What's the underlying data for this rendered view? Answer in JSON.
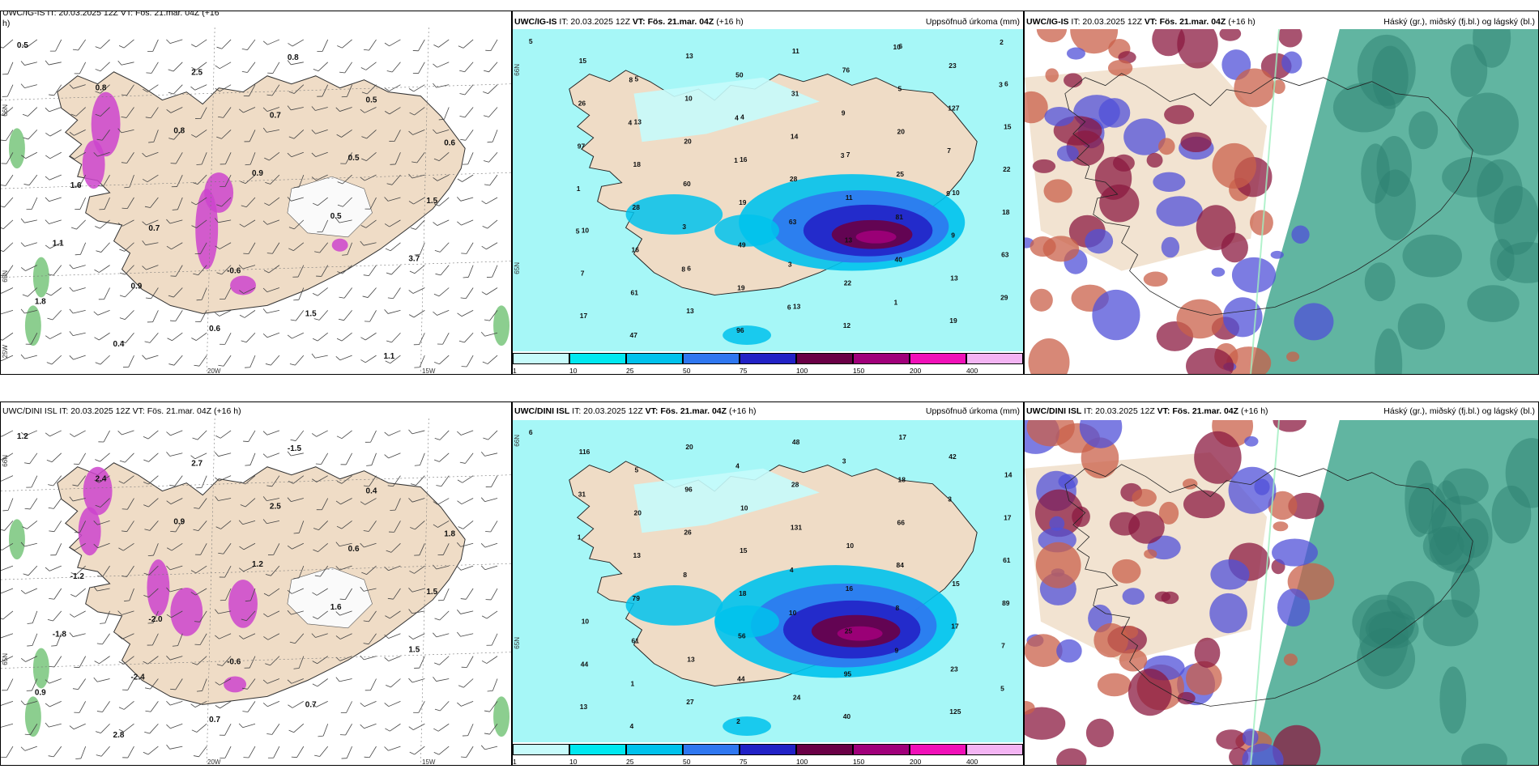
{
  "legend_colors": [
    "#c6fbfb",
    "#00e8f0",
    "#00c2ec",
    "#2f77f0",
    "#2222c6",
    "#6a0046",
    "#a0007a",
    "#f010b8",
    "#f3b4f3"
  ],
  "colorbar_ticks": [
    "1",
    "10",
    "25",
    "50",
    "75",
    "100",
    "150",
    "200",
    "400"
  ],
  "precip_title": "Uppsöfnuð úrkoma (mm)",
  "cloud_title": "Háský (gr.), miðský (fj.bl.) og lágský (bl.)",
  "rows": [
    {
      "model": "UWC/IG-IS",
      "it": " IT: 20.03.2025 12Z ",
      "vt_label": "VT: Fös. 21.mar. 04Z",
      "lead": " (+16 h)",
      "left_title": "UWC/IG-IS IT: 20.03.2025 12Z VT: Fös. 21.mar. 04Z (+16",
      "left_title_wrap": "h)",
      "lon_labels": [
        "20W",
        "15W"
      ],
      "lat_labels": [
        "66N",
        "65N",
        "25W"
      ],
      "temp_labels": [
        "0.5",
        "0.8",
        "0.8",
        "0.9",
        "0.5",
        "3.7",
        "1.8",
        "0.4",
        "2.5",
        "0.7",
        "0.5",
        "1.5",
        "1.1",
        "0.9",
        "0.6",
        "0.8",
        "0.5",
        "0.6",
        "1.6",
        "0.7",
        "-0.6",
        "1.5",
        "1.1"
      ],
      "precip_labels": [
        "5",
        "5",
        "4",
        "7",
        "10",
        "10",
        "6",
        "13",
        "6",
        "6",
        "13",
        "16",
        "11",
        "9",
        "7",
        "13",
        "11",
        "5",
        "15",
        "18",
        "19",
        "13",
        "13",
        "17",
        "13",
        "31",
        "20",
        "22",
        "28",
        "49",
        "22",
        "19",
        "15",
        "10",
        "14",
        "25",
        "18",
        "16",
        "19",
        "12",
        "23",
        "26",
        "20",
        "28",
        "81",
        "63",
        "61",
        "96",
        "76",
        "127",
        "97",
        "60",
        "63",
        "40",
        "29",
        "47",
        "50",
        "9",
        "7",
        "1",
        "3",
        "3",
        "1",
        "2",
        "8",
        "4",
        "3",
        "9",
        "5",
        "8",
        "6",
        "10",
        "3",
        "4",
        "1"
      ]
    },
    {
      "model": "UWC/DINI ISL",
      "it": " IT: 20.03.2025 12Z ",
      "vt_label": "VT: Fös. 21.mar. 04Z",
      "lead": " (+16 h)",
      "left_title": "UWC/DINI ISL IT: 20.03.2025 12Z VT: Fös. 21.mar. 04Z (+16 h)",
      "left_title_wrap": "",
      "lon_labels": [
        "20W",
        "15W"
      ],
      "lat_labels": [
        "66N",
        "65N"
      ],
      "temp_labels": [
        "1.2",
        "2.4",
        "0.9",
        "1.2",
        "1.6",
        "1.5",
        "0.9",
        "2.8",
        "2.7",
        "2.5",
        "0.6",
        "1.5",
        "-1.8",
        "-2.4",
        "0.7",
        "-1.5",
        "0.4",
        "1.8",
        "-1.2",
        "-2.0",
        "-0.6",
        "0.7"
      ],
      "precip_labels": [
        "6",
        "5",
        "10",
        "10",
        "15",
        "10",
        "13",
        "24",
        "17",
        "14",
        "20",
        "15",
        "16",
        "17",
        "44",
        "27",
        "48",
        "18",
        "17",
        "13",
        "18",
        "25",
        "23",
        "13",
        "20",
        "28",
        "66",
        "61",
        "79",
        "56",
        "95",
        "125",
        "116",
        "96",
        "131",
        "84",
        "89",
        "61",
        "44",
        "40",
        "42",
        "31",
        "26",
        "4",
        "8",
        "7",
        "1",
        "2",
        "3",
        "3",
        "1",
        "8",
        "10",
        "9",
        "5",
        "4",
        "4"
      ]
    }
  ]
}
